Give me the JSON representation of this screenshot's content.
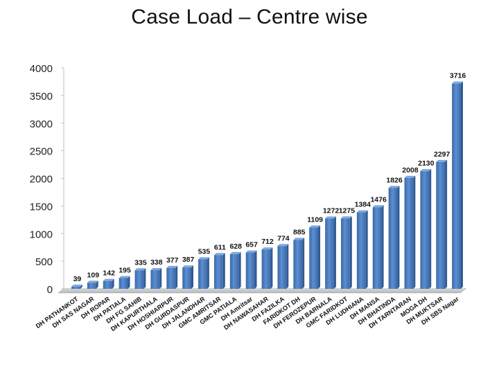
{
  "slide": {
    "title": "Case Load – Centre wise"
  },
  "chart_data": {
    "type": "bar",
    "title": "Case Load – Centre wise",
    "xlabel": "",
    "ylabel": "",
    "ylim": [
      0,
      4000
    ],
    "yticks": [
      0,
      500,
      1000,
      1500,
      2000,
      2500,
      3000,
      3500,
      4000
    ],
    "grid": false,
    "legend": "none",
    "bar_color": "#4a7ebb",
    "categories": [
      "DH PATHANKOT",
      "DH SAS NAGAR",
      "DH ROPAR",
      "DH PATIALA",
      "DH FG SAHIB",
      "DH KAPURTHALA",
      "DH HOSHIARPUR",
      "DH GURDASPUR",
      "DH JALANDHAR",
      "GMC AMRITSAR",
      "GMC PATIALA",
      "DH Amritsar",
      "DH NAWASAHAR",
      "DH FAZILKA",
      "FARIDKOT DH",
      "DH FEROZEPUR",
      "DH BARNALA",
      "GMC FARIDKOT",
      "DH LUDHIANA",
      "DH MANSA",
      "DH BHATINDA",
      "DH TARNTARAN",
      "MOGA DH",
      "DH MUKTSAR",
      "DH SBS Nagar"
    ],
    "values": [
      39,
      109,
      142,
      195,
      335,
      338,
      377,
      387,
      535,
      611,
      628,
      657,
      712,
      774,
      885,
      1109,
      1272,
      1275,
      1384,
      1476,
      1826,
      2008,
      2130,
      2297,
      3716
    ]
  }
}
